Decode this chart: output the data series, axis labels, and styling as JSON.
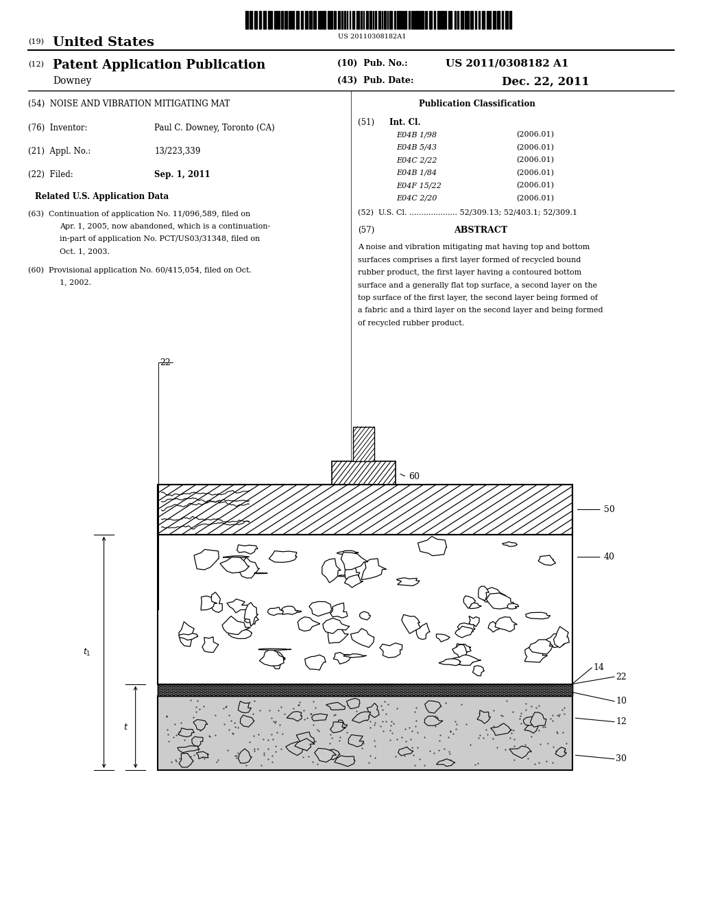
{
  "bg_color": "#ffffff",
  "barcode_text": "US 20110308182A1",
  "int_cl_entries": [
    [
      "E04B 1/98",
      "(2006.01)"
    ],
    [
      "E04B 5/43",
      "(2006.01)"
    ],
    [
      "E04C 2/22",
      "(2006.01)"
    ],
    [
      "E04B 1/84",
      "(2006.01)"
    ],
    [
      "E04F 15/22",
      "(2006.01)"
    ],
    [
      "E04C 2/20",
      "(2006.01)"
    ]
  ]
}
